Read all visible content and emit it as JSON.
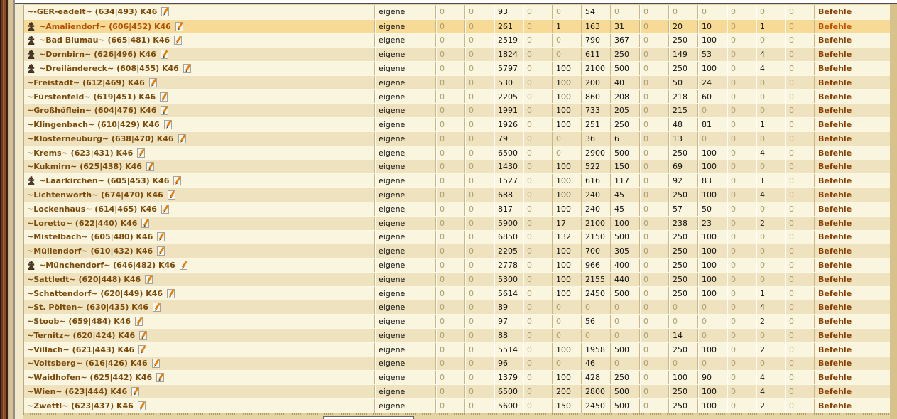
{
  "labels": {
    "own": "eigene",
    "commands": "Befehle"
  },
  "icons": {
    "flag": "group-flag-icon",
    "edit": "edit-pencil-icon"
  },
  "colors": {
    "row_light": "#faf5de",
    "row_dark": "#efe3bf",
    "row_highlight": "#f7da96",
    "village_link": "#7b4a0a",
    "village_link_highlight": "#b34d00",
    "commands_link": "#8a3c00",
    "zero_text": "#ab9c70",
    "number_text": "#101010",
    "pencil_orange": "#e87e04",
    "flag_brown": "#4e3a26"
  },
  "rows": [
    {
      "name": "~-GER-eadelt~",
      "coords": "(634|493)",
      "continent": "K46",
      "flag": false,
      "highlighted": false,
      "values": [
        0,
        0,
        93,
        0,
        0,
        54,
        0,
        0,
        0,
        0,
        0,
        0,
        0
      ]
    },
    {
      "name": "~Amaliendorf~",
      "coords": "(606|452)",
      "continent": "K46",
      "flag": true,
      "highlighted": true,
      "values": [
        0,
        0,
        261,
        0,
        1,
        163,
        31,
        0,
        20,
        10,
        0,
        1,
        0
      ]
    },
    {
      "name": "~Bad Blumau~",
      "coords": "(665|481)",
      "continent": "K46",
      "flag": true,
      "highlighted": false,
      "values": [
        0,
        0,
        2519,
        0,
        0,
        790,
        367,
        0,
        250,
        100,
        0,
        0,
        0
      ]
    },
    {
      "name": "~Dornbirn~",
      "coords": "(626|496)",
      "continent": "K46",
      "flag": true,
      "highlighted": false,
      "values": [
        0,
        0,
        1824,
        0,
        0,
        611,
        250,
        0,
        149,
        53,
        0,
        4,
        0
      ]
    },
    {
      "name": "~Dreiländereck~",
      "coords": "(608|455)",
      "continent": "K46",
      "flag": true,
      "highlighted": false,
      "values": [
        0,
        0,
        5797,
        0,
        100,
        2100,
        500,
        0,
        250,
        100,
        0,
        4,
        0
      ]
    },
    {
      "name": "~Freistadt~",
      "coords": "(612|469)",
      "continent": "K46",
      "flag": false,
      "highlighted": false,
      "values": [
        0,
        0,
        530,
        0,
        100,
        200,
        40,
        0,
        50,
        24,
        0,
        0,
        0
      ]
    },
    {
      "name": "~Fürstenfeld~",
      "coords": "(619|451)",
      "continent": "K46",
      "flag": false,
      "highlighted": false,
      "values": [
        0,
        0,
        2205,
        0,
        100,
        860,
        208,
        0,
        218,
        60,
        0,
        0,
        0
      ]
    },
    {
      "name": "~Großhöflein~",
      "coords": "(604|476)",
      "continent": "K46",
      "flag": false,
      "highlighted": false,
      "values": [
        0,
        0,
        1991,
        0,
        100,
        733,
        205,
        0,
        215,
        0,
        0,
        0,
        0
      ]
    },
    {
      "name": "~Klingenbach~",
      "coords": "(610|429)",
      "continent": "K46",
      "flag": false,
      "highlighted": false,
      "values": [
        0,
        0,
        1926,
        0,
        100,
        251,
        250,
        0,
        48,
        81,
        0,
        1,
        0
      ]
    },
    {
      "name": "~Klosterneuburg~",
      "coords": "(638|470)",
      "continent": "K46",
      "flag": false,
      "highlighted": false,
      "values": [
        0,
        0,
        79,
        0,
        0,
        36,
        6,
        0,
        13,
        0,
        0,
        0,
        0
      ]
    },
    {
      "name": "~Krems~",
      "coords": "(623|431)",
      "continent": "K46",
      "flag": false,
      "highlighted": false,
      "values": [
        0,
        0,
        6500,
        0,
        0,
        2900,
        500,
        0,
        250,
        100,
        0,
        4,
        0
      ]
    },
    {
      "name": "~Kukmirn~",
      "coords": "(625|438)",
      "continent": "K46",
      "flag": false,
      "highlighted": false,
      "values": [
        0,
        0,
        1430,
        0,
        100,
        522,
        150,
        0,
        69,
        100,
        0,
        0,
        0
      ]
    },
    {
      "name": "~Laarkirchen~",
      "coords": "(605|453)",
      "continent": "K46",
      "flag": true,
      "highlighted": false,
      "values": [
        0,
        0,
        1527,
        0,
        100,
        616,
        117,
        0,
        92,
        83,
        0,
        1,
        0
      ]
    },
    {
      "name": "~Lichtenwörth~",
      "coords": "(674|470)",
      "continent": "K46",
      "flag": false,
      "highlighted": false,
      "values": [
        0,
        0,
        688,
        0,
        100,
        240,
        45,
        0,
        250,
        100,
        0,
        4,
        0
      ]
    },
    {
      "name": "~Lockenhaus~",
      "coords": "(614|465)",
      "continent": "K46",
      "flag": false,
      "highlighted": false,
      "values": [
        0,
        0,
        817,
        0,
        100,
        240,
        45,
        0,
        57,
        50,
        0,
        0,
        0
      ]
    },
    {
      "name": "~Loretto~",
      "coords": "(622|440)",
      "continent": "K46",
      "flag": false,
      "highlighted": false,
      "values": [
        0,
        0,
        5900,
        0,
        17,
        2100,
        100,
        0,
        238,
        23,
        0,
        2,
        0
      ]
    },
    {
      "name": "~Mistelbach~",
      "coords": "(605|480)",
      "continent": "K46",
      "flag": false,
      "highlighted": false,
      "values": [
        0,
        0,
        6850,
        0,
        132,
        2150,
        500,
        0,
        250,
        100,
        0,
        0,
        0
      ]
    },
    {
      "name": "~Müllendorf~",
      "coords": "(610|432)",
      "continent": "K46",
      "flag": false,
      "highlighted": false,
      "values": [
        0,
        0,
        2205,
        0,
        100,
        700,
        305,
        0,
        250,
        100,
        0,
        0,
        0
      ]
    },
    {
      "name": "~Münchendorf~",
      "coords": "(646|482)",
      "continent": "K46",
      "flag": true,
      "highlighted": false,
      "values": [
        0,
        0,
        2778,
        0,
        100,
        966,
        400,
        0,
        250,
        100,
        0,
        0,
        0
      ]
    },
    {
      "name": "~Sattledt~",
      "coords": "(620|448)",
      "continent": "K46",
      "flag": false,
      "highlighted": false,
      "values": [
        0,
        0,
        5300,
        0,
        100,
        2155,
        440,
        0,
        250,
        100,
        0,
        0,
        0
      ]
    },
    {
      "name": "~Schattendorf~",
      "coords": "(620|449)",
      "continent": "K46",
      "flag": false,
      "highlighted": false,
      "values": [
        0,
        0,
        5614,
        0,
        100,
        2450,
        500,
        0,
        250,
        100,
        0,
        1,
        0
      ]
    },
    {
      "name": "~St. Pölten~",
      "coords": "(630|435)",
      "continent": "K46",
      "flag": false,
      "highlighted": false,
      "values": [
        0,
        0,
        89,
        0,
        0,
        0,
        0,
        0,
        0,
        0,
        0,
        4,
        0
      ]
    },
    {
      "name": "~Stoob~",
      "coords": "(659|484)",
      "continent": "K46",
      "flag": false,
      "highlighted": false,
      "values": [
        0,
        0,
        97,
        0,
        0,
        56,
        0,
        0,
        0,
        0,
        0,
        2,
        0
      ]
    },
    {
      "name": "~Ternitz~",
      "coords": "(620|424)",
      "continent": "K46",
      "flag": false,
      "highlighted": false,
      "values": [
        0,
        0,
        88,
        0,
        0,
        0,
        0,
        0,
        14,
        0,
        0,
        0,
        0
      ]
    },
    {
      "name": "~Villach~",
      "coords": "(621|443)",
      "continent": "K46",
      "flag": false,
      "highlighted": false,
      "values": [
        0,
        0,
        5514,
        0,
        100,
        1958,
        500,
        0,
        250,
        100,
        0,
        2,
        0
      ]
    },
    {
      "name": "~Voitsberg~",
      "coords": "(616|426)",
      "continent": "K46",
      "flag": false,
      "highlighted": false,
      "values": [
        0,
        0,
        96,
        0,
        0,
        46,
        0,
        0,
        0,
        0,
        0,
        0,
        0
      ]
    },
    {
      "name": "~Waidhofen~",
      "coords": "(625|442)",
      "continent": "K46",
      "flag": false,
      "highlighted": false,
      "values": [
        0,
        0,
        1379,
        0,
        100,
        428,
        250,
        0,
        100,
        90,
        0,
        4,
        0
      ]
    },
    {
      "name": "~Wien~",
      "coords": "(623|444)",
      "continent": "K46",
      "flag": false,
      "highlighted": false,
      "values": [
        0,
        0,
        6500,
        0,
        200,
        2800,
        500,
        0,
        250,
        100,
        0,
        4,
        0
      ]
    },
    {
      "name": "~Zwettl~",
      "coords": "(623|437)",
      "continent": "K46",
      "flag": false,
      "highlighted": false,
      "values": [
        0,
        0,
        5600,
        0,
        150,
        2450,
        500,
        0,
        250,
        100,
        0,
        2,
        0
      ]
    }
  ]
}
